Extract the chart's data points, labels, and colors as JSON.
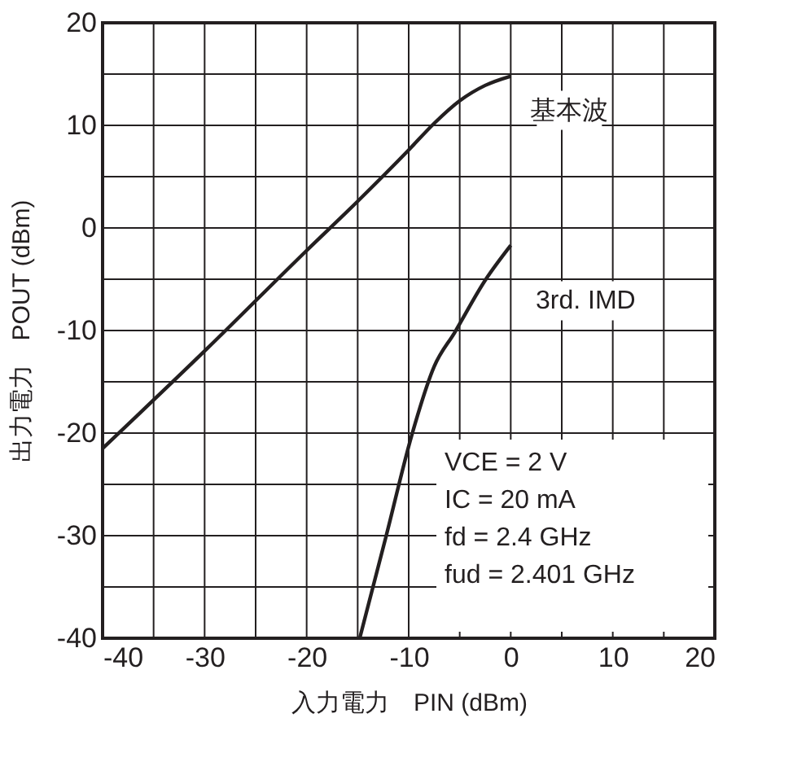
{
  "chart_data": {
    "type": "line",
    "xlabel": "入力電力　PIN (dBm)",
    "ylabel": "出力電力　POUT (dBm)",
    "xlim": [
      -40,
      20
    ],
    "ylim": [
      -40,
      20
    ],
    "xticks": [
      -40,
      {
        "value": -35,
        "label": null
      },
      -30,
      {
        "value": -25,
        "label": null
      },
      -20,
      {
        "value": -15,
        "label": null
      },
      -10,
      {
        "value": -5,
        "label": null
      },
      0,
      {
        "value": 5,
        "label": null
      },
      10,
      {
        "value": 15,
        "label": null
      },
      20
    ],
    "yticks": [
      -40,
      {
        "value": -35,
        "label": null
      },
      -30,
      {
        "value": -25,
        "label": null
      },
      -20,
      {
        "value": -15,
        "label": null
      },
      -10,
      {
        "value": -5,
        "label": null
      },
      0,
      {
        "value": 5,
        "label": null
      },
      10,
      {
        "value": 15,
        "label": null
      },
      20
    ],
    "grid": true,
    "line_style": "solid",
    "series": [
      {
        "name": "基本波",
        "color": "#231f20",
        "x": [
          -40,
          -30,
          -20,
          -15,
          -10,
          -7.5,
          -5,
          -2.5,
          0
        ],
        "values": [
          -21.5,
          -12,
          -2.2,
          2.6,
          7.6,
          10.2,
          12.4,
          13.9,
          14.8
        ]
      },
      {
        "name": "3rd. IMD",
        "color": "#231f20",
        "x": [
          -14.8,
          -12.2,
          -9.7,
          -7.5,
          -5.5,
          -2.5,
          0
        ],
        "values": [
          -40,
          -30,
          -20.2,
          -13.5,
          -10.2,
          -5.1,
          -1.7
        ]
      }
    ],
    "annotations": [
      "VCE = 2 V",
      "IC = 20 mA",
      "fd = 2.4 GHz",
      "fud = 2.401 GHz"
    ]
  }
}
